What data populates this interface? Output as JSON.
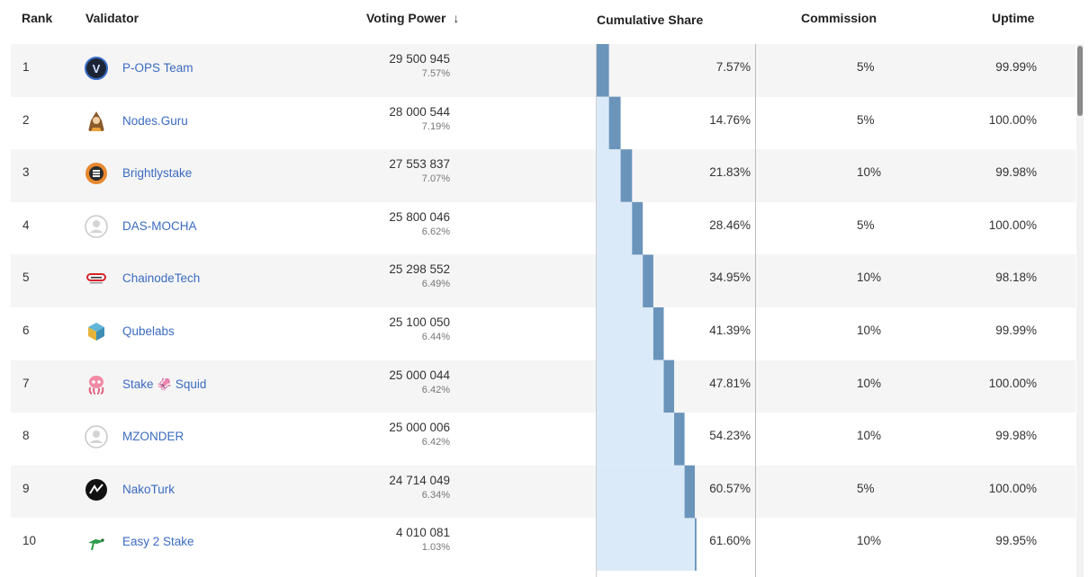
{
  "header": {
    "rank": "Rank",
    "validator": "Validator",
    "voting_power": "Voting Power",
    "sort_arrow": "↓",
    "cumulative_share": "Cumulative Share",
    "commission": "Commission",
    "uptime": "Uptime"
  },
  "colors": {
    "link": "#3b6bc0",
    "bar_dark": "#6b94bb",
    "bar_light": "#dbeaf8",
    "row_alt": "#f5f5f5"
  },
  "rows": [
    {
      "rank": "1",
      "name": "P-OPS Team",
      "icon": "p-ops-logo-icon",
      "power": "29 500 945",
      "power_pct": "7.57%",
      "cumulative": "7.57%",
      "commission": "5%",
      "uptime": "99.99%",
      "share_prev": 0,
      "share_own": 7.57
    },
    {
      "rank": "2",
      "name": "Nodes.Guru",
      "icon": "nodes-guru-logo-icon",
      "power": "28 000 544",
      "power_pct": "7.19%",
      "cumulative": "14.76%",
      "commission": "5%",
      "uptime": "100.00%",
      "share_prev": 7.57,
      "share_own": 7.19
    },
    {
      "rank": "3",
      "name": "Brightlystake",
      "icon": "brightlystake-logo-icon",
      "power": "27 553 837",
      "power_pct": "7.07%",
      "cumulative": "21.83%",
      "commission": "10%",
      "uptime": "99.98%",
      "share_prev": 14.76,
      "share_own": 7.07
    },
    {
      "rank": "4",
      "name": "DAS-MOCHA",
      "icon": "default-avatar-icon",
      "power": "25 800 046",
      "power_pct": "6.62%",
      "cumulative": "28.46%",
      "commission": "5%",
      "uptime": "100.00%",
      "share_prev": 21.83,
      "share_own": 6.62
    },
    {
      "rank": "5",
      "name": "ChainodeTech",
      "icon": "chainodetech-logo-icon",
      "power": "25 298 552",
      "power_pct": "6.49%",
      "cumulative": "34.95%",
      "commission": "10%",
      "uptime": "98.18%",
      "share_prev": 28.46,
      "share_own": 6.49
    },
    {
      "rank": "6",
      "name": "Qubelabs",
      "icon": "qubelabs-logo-icon",
      "power": "25 100 050",
      "power_pct": "6.44%",
      "cumulative": "41.39%",
      "commission": "10%",
      "uptime": "99.99%",
      "share_prev": 34.95,
      "share_own": 6.44
    },
    {
      "rank": "7",
      "name": "Stake 🦑 Squid",
      "icon": "stake-squid-logo-icon",
      "power": "25 000 044",
      "power_pct": "6.42%",
      "cumulative": "47.81%",
      "commission": "10%",
      "uptime": "100.00%",
      "share_prev": 41.39,
      "share_own": 6.42
    },
    {
      "rank": "8",
      "name": "MZONDER",
      "icon": "default-avatar-icon",
      "power": "25 000 006",
      "power_pct": "6.42%",
      "cumulative": "54.23%",
      "commission": "10%",
      "uptime": "99.98%",
      "share_prev": 47.81,
      "share_own": 6.42
    },
    {
      "rank": "9",
      "name": "NakoTurk",
      "icon": "nakoturk-logo-icon",
      "power": "24 714 049",
      "power_pct": "6.34%",
      "cumulative": "60.57%",
      "commission": "5%",
      "uptime": "100.00%",
      "share_prev": 54.23,
      "share_own": 6.34
    },
    {
      "rank": "10",
      "name": "Easy 2 Stake",
      "icon": "easy-2-stake-logo-icon",
      "power": "4 010 081",
      "power_pct": "1.03%",
      "cumulative": "61.60%",
      "commission": "10%",
      "uptime": "99.95%",
      "share_prev": 60.57,
      "share_own": 1.03
    }
  ]
}
